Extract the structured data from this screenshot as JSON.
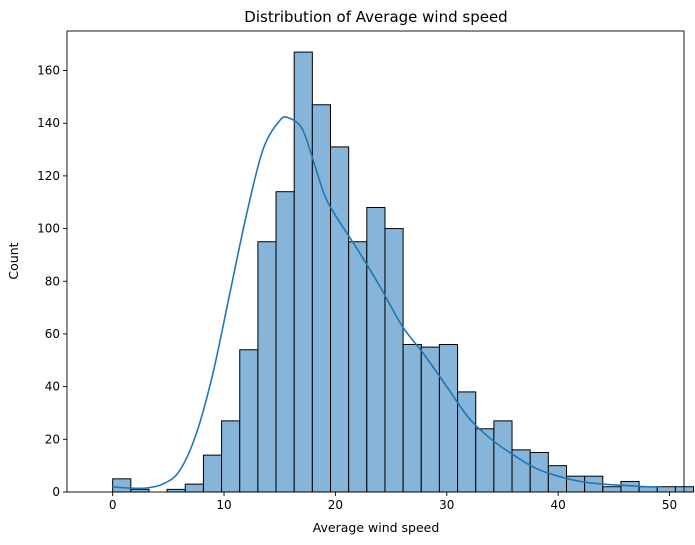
{
  "chart_data": {
    "type": "bar",
    "title": "Distribution of Average wind speed",
    "xlabel": "Average wind speed",
    "ylabel": "Count",
    "xlim": [
      -4.1,
      51.3
    ],
    "ylim": [
      0,
      175
    ],
    "xticks": [
      0,
      10,
      20,
      30,
      40,
      50
    ],
    "yticks": [
      0,
      20,
      40,
      60,
      80,
      100,
      120,
      140,
      160
    ],
    "bin_width": 1.63,
    "bin_edges_start": 0,
    "values": [
      5,
      1,
      0,
      1,
      3,
      14,
      27,
      54,
      95,
      114,
      167,
      147,
      131,
      95,
      108,
      100,
      56,
      55,
      56,
      38,
      24,
      27,
      16,
      15,
      10,
      6,
      6,
      2,
      4,
      2,
      2,
      2
    ],
    "kde": {
      "x": [
        0,
        1.5,
        3,
        4.5,
        6,
        7.5,
        9,
        10.5,
        12,
        13.5,
        15,
        15.8,
        17,
        18,
        19,
        20,
        22,
        24,
        26,
        28,
        30,
        32,
        34,
        36,
        38,
        40,
        42,
        44,
        46,
        48,
        49.2
      ],
      "y": [
        2,
        1.5,
        1.5,
        3,
        8,
        22,
        45,
        75,
        105,
        130,
        141,
        142,
        138,
        126,
        113,
        105,
        92,
        78,
        63,
        52,
        40,
        28,
        20,
        14,
        9,
        6,
        4,
        3,
        2.5,
        2,
        2
      ]
    },
    "bar_color": "#87b5d9",
    "bar_edge": "#000000",
    "kde_color": "#1f77b4"
  }
}
